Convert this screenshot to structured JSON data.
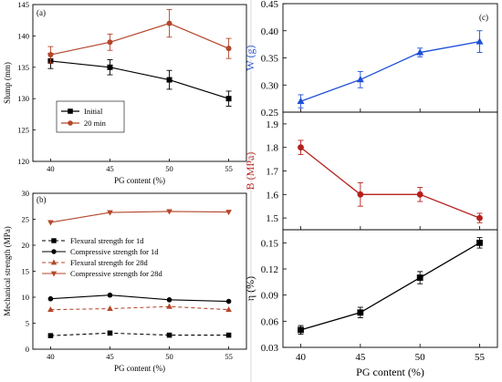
{
  "chart_data": [
    {
      "id": "a",
      "type": "line",
      "panel_label": "(a)",
      "xlabel": "PG content (%)",
      "ylabel": "Slump (mm)",
      "x": [
        40,
        45,
        50,
        55
      ],
      "xticks": [
        "40",
        "45",
        "50",
        "55"
      ],
      "ylim": [
        120,
        145
      ],
      "yticks": [
        "120",
        "125",
        "130",
        "135",
        "140",
        "145"
      ],
      "legend_position": "lower-left",
      "series": [
        {
          "name": "Initial",
          "values": [
            136,
            135,
            133,
            130
          ],
          "errors": [
            1.2,
            1.2,
            1.5,
            1.2
          ],
          "color": "#000000",
          "marker": "square"
        },
        {
          "name": "20 min",
          "values": [
            137,
            139,
            142,
            138
          ],
          "errors": [
            1.3,
            1.3,
            2.2,
            1.6
          ],
          "color": "#b5462b",
          "marker": "circle"
        }
      ]
    },
    {
      "id": "b",
      "type": "line",
      "panel_label": "(b)",
      "xlabel": "PG content (%)",
      "ylabel": "Mechanical strength (MPa)",
      "x": [
        40,
        45,
        50,
        55
      ],
      "xticks": [
        "40",
        "45",
        "50",
        "55"
      ],
      "ylim": [
        0,
        30
      ],
      "yticks": [
        "0",
        "5",
        "10",
        "15",
        "20",
        "25",
        "30"
      ],
      "legend_position": "center-left",
      "series": [
        {
          "name": "Flexural strength for 1d",
          "values": [
            2.6,
            3.1,
            2.7,
            2.7
          ],
          "color": "#000000",
          "marker": "square",
          "dashed": true
        },
        {
          "name": "Compressive strength for 1d",
          "values": [
            9.7,
            10.4,
            9.5,
            9.2
          ],
          "color": "#000000",
          "marker": "circle",
          "dashed": false
        },
        {
          "name": "Flexural strength for 28d",
          "values": [
            7.6,
            7.8,
            8.2,
            7.6
          ],
          "color": "#b5462b",
          "marker": "triangle-up",
          "dashed": true
        },
        {
          "name": "Compressive strength for 28d",
          "values": [
            24.4,
            26.3,
            26.5,
            26.4
          ],
          "color": "#b5462b",
          "marker": "triangle-down",
          "dashed": false
        }
      ]
    },
    {
      "id": "c",
      "type": "line",
      "panel_label": "(c)",
      "xlabel": "PG content (%)",
      "x": [
        40,
        45,
        50,
        55
      ],
      "xticks": [
        "40",
        "45",
        "50",
        "55"
      ],
      "subplots": [
        {
          "id": "W",
          "ylabel": "W (g)",
          "ylabel_color": "#1f4fd8",
          "ylim": [
            0.25,
            0.45
          ],
          "yticks": [
            "0.25",
            "0.30",
            "0.35",
            "0.40",
            "0.45"
          ],
          "values": [
            0.27,
            0.31,
            0.36,
            0.38
          ],
          "errors": [
            0.012,
            0.015,
            0.008,
            0.02
          ],
          "color": "#1f4fd8",
          "marker": "triangle-up"
        },
        {
          "id": "B",
          "ylabel": "B (MPa)",
          "ylabel_color": "#b5201d",
          "ylim": [
            1.45,
            1.95
          ],
          "yticks": [
            "1.5",
            "1.6",
            "1.7",
            "1.8",
            "1.9"
          ],
          "values": [
            1.8,
            1.6,
            1.6,
            1.5
          ],
          "errors": [
            0.03,
            0.05,
            0.03,
            0.02
          ],
          "color": "#b5201d",
          "marker": "circle"
        },
        {
          "id": "eta",
          "ylabel": "η (%)",
          "ylabel_color": "#000000",
          "ylim": [
            0.03,
            0.165
          ],
          "yticks": [
            "0.03",
            "0.06",
            "0.09",
            "0.12",
            "0.15"
          ],
          "values": [
            0.05,
            0.07,
            0.11,
            0.15
          ],
          "errors": [
            0.005,
            0.006,
            0.007,
            0.006
          ],
          "color": "#000000",
          "marker": "square"
        }
      ]
    }
  ]
}
